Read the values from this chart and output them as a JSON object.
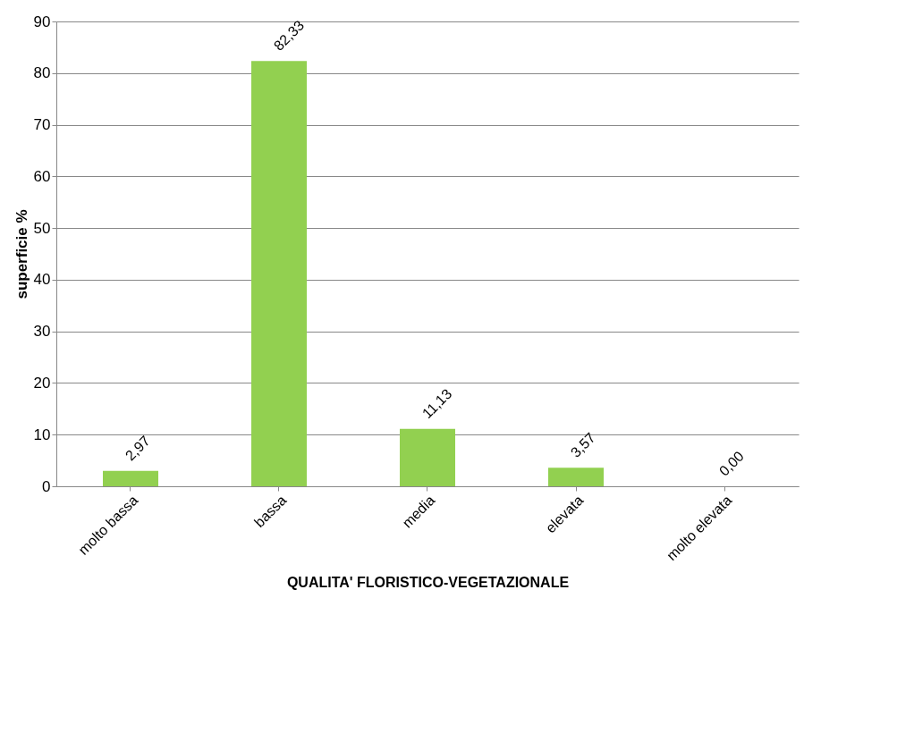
{
  "chart_data": {
    "type": "bar",
    "xlabel": "QUALITA' FLORISTICO-VEGETAZIONALE",
    "ylabel": "superficie %",
    "categories": [
      "molto bassa",
      "bassa",
      "media",
      "elevata",
      "molto elevata"
    ],
    "values": [
      2.97,
      82.33,
      11.13,
      3.57,
      0.0
    ],
    "value_labels": [
      "2,97",
      "82,33",
      "11,13",
      "3,57",
      "0,00"
    ],
    "color": "#92d050",
    "ylim": [
      0,
      90
    ],
    "yticks": [
      0,
      10,
      20,
      30,
      40,
      50,
      60,
      70,
      80,
      90
    ],
    "grid": "y"
  }
}
